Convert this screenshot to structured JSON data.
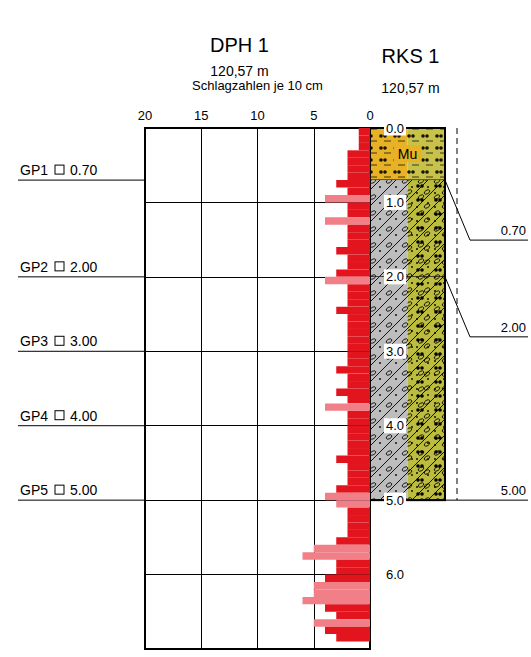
{
  "chart_data": {
    "type": "bar",
    "orientation": "horizontal",
    "title": "DPH 1",
    "subtitle": "120,57 m",
    "x_label": "Schlagzahlen je 10 cm",
    "bins": [
      0,
      0.1,
      0.2,
      0.3,
      0.4,
      0.5,
      0.6,
      0.7,
      0.8,
      0.9,
      1,
      1.1,
      1.2,
      1.3,
      1.4,
      1.5,
      1.6,
      1.7,
      1.8,
      1.9,
      2,
      2.1,
      2.2,
      2.3,
      2.4,
      2.5,
      2.6,
      2.7,
      2.8,
      2.9,
      3,
      3.1,
      3.2,
      3.3,
      3.4,
      3.5,
      3.6,
      3.7,
      3.8,
      3.9,
      4,
      4.1,
      4.2,
      4.3,
      4.4,
      4.5,
      4.6,
      4.7,
      4.8,
      4.9,
      5,
      5.1,
      5.2,
      5.3,
      5.4,
      5.5,
      5.6,
      5.7,
      5.8,
      5.9,
      6,
      6.1,
      6.2,
      6.3,
      6.4,
      6.5,
      6.6,
      6.7,
      6.8,
      6.9
    ],
    "values": [
      1,
      1,
      1,
      2,
      2,
      2,
      2,
      3,
      2,
      4,
      2,
      2,
      4,
      2,
      2,
      2,
      3,
      2,
      2,
      3,
      4,
      2,
      2,
      2,
      3,
      2,
      2,
      2,
      2,
      2,
      2,
      2,
      3,
      2,
      2,
      3,
      2,
      4,
      2,
      2,
      2,
      2,
      2,
      2,
      3,
      2,
      2,
      2,
      3,
      4,
      3,
      2,
      2,
      2,
      2,
      3,
      5,
      6,
      3,
      3,
      4,
      5,
      5,
      6,
      4,
      3,
      5,
      4,
      3
    ],
    "colors": [
      "#e2141e",
      "#e2141e",
      "#e2141e",
      "#e2141e",
      "#e2141e",
      "#e2141e",
      "#e2141e",
      "#e2141e",
      "#e2141e",
      "#f07f88",
      "#e2141e",
      "#e2141e",
      "#f07f88",
      "#e2141e",
      "#e2141e",
      "#e2141e",
      "#e2141e",
      "#e2141e",
      "#e2141e",
      "#e2141e",
      "#f07f88",
      "#e2141e",
      "#e2141e",
      "#e2141e",
      "#e2141e",
      "#e2141e",
      "#e2141e",
      "#e2141e",
      "#e2141e",
      "#e2141e",
      "#e2141e",
      "#e2141e",
      "#e2141e",
      "#e2141e",
      "#e2141e",
      "#e2141e",
      "#e2141e",
      "#f07f88",
      "#e2141e",
      "#e2141e",
      "#e2141e",
      "#e2141e",
      "#e2141e",
      "#e2141e",
      "#e2141e",
      "#e2141e",
      "#e2141e",
      "#e2141e",
      "#e2141e",
      "#f07f88",
      "#f07f88",
      "#e2141e",
      "#e2141e",
      "#e2141e",
      "#e2141e",
      "#e2141e",
      "#f07f88",
      "#f07f88",
      "#e2141e",
      "#e2141e",
      "#e2141e",
      "#f07f88",
      "#f07f88",
      "#f07f88",
      "#e2141e",
      "#e2141e",
      "#f07f88",
      "#e2141e",
      "#e2141e"
    ],
    "xlim": [
      0,
      20
    ],
    "xticks": [
      0,
      5,
      10,
      15,
      20
    ],
    "ylim": [
      0,
      7
    ],
    "yticks": [
      {
        "value": 0,
        "label": "0.0"
      },
      {
        "value": 1,
        "label": "1.0"
      },
      {
        "value": 2,
        "label": "2.0"
      },
      {
        "value": 3,
        "label": "3.0"
      },
      {
        "value": 4,
        "label": "4.0"
      },
      {
        "value": 5,
        "label": "5.0"
      },
      {
        "value": 6,
        "label": "6.0"
      }
    ],
    "grid": true
  },
  "profile": {
    "title": "RKS 1",
    "subtitle": "120,57 m",
    "layers": [
      {
        "top": 0,
        "bottom": 0.7,
        "bottom_label": "0.70",
        "label": "Mu",
        "colors": [
          "#e8b226",
          "#c9c24a"
        ]
      },
      {
        "top": 0.7,
        "bottom": 2.0,
        "bottom_label": "2.00",
        "colors": [
          "#bdbdbd",
          "#bcbc3e"
        ]
      },
      {
        "top": 2.0,
        "bottom": 5.0,
        "bottom_label": "5.00",
        "colors": [
          "#bdbdbd",
          "#bcbc3e"
        ]
      }
    ]
  },
  "samples": [
    {
      "label": "GP1",
      "depth": 0.7,
      "depth_label": "0.70"
    },
    {
      "label": "GP2",
      "depth": 2.0,
      "depth_label": "2.00"
    },
    {
      "label": "GP3",
      "depth": 3.0,
      "depth_label": "3.00"
    },
    {
      "label": "GP4",
      "depth": 4.0,
      "depth_label": "4.00"
    },
    {
      "label": "GP5",
      "depth": 5.0,
      "depth_label": "5.00"
    }
  ]
}
